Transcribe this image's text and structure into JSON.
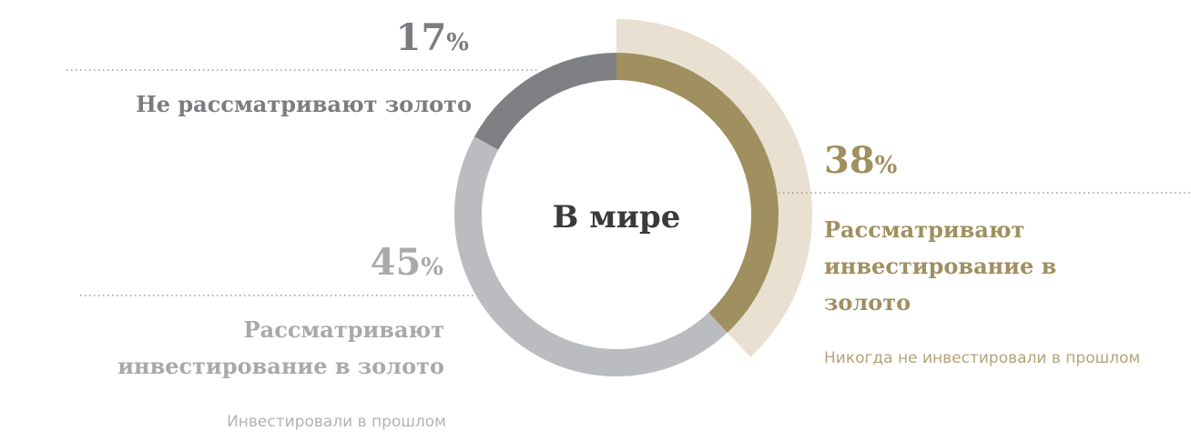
{
  "chart_data": {
    "type": "pie",
    "donut": true,
    "center_label": "В мире",
    "categories": [
      "Рассматривают инвестирование в золото",
      "Рассматривают инвестирование в золото",
      "Не рассматривают золото"
    ],
    "sublabels": [
      "Никогда не инвестировали в прошлом",
      "Инвестировали в прошлом",
      null
    ],
    "values": [
      38,
      45,
      17
    ],
    "value_labels": [
      "38%",
      "45%",
      "17%"
    ],
    "colors": [
      "#a08f5f",
      "#bbbcbf",
      "#7f8084"
    ],
    "label_colors": [
      "#a08f5f",
      "#a9a9ab",
      "#7c7c80"
    ],
    "sublabel_colors": [
      "#b3a478",
      "#b3b3b5",
      null
    ],
    "highlight_color": "#e9e0d1"
  }
}
